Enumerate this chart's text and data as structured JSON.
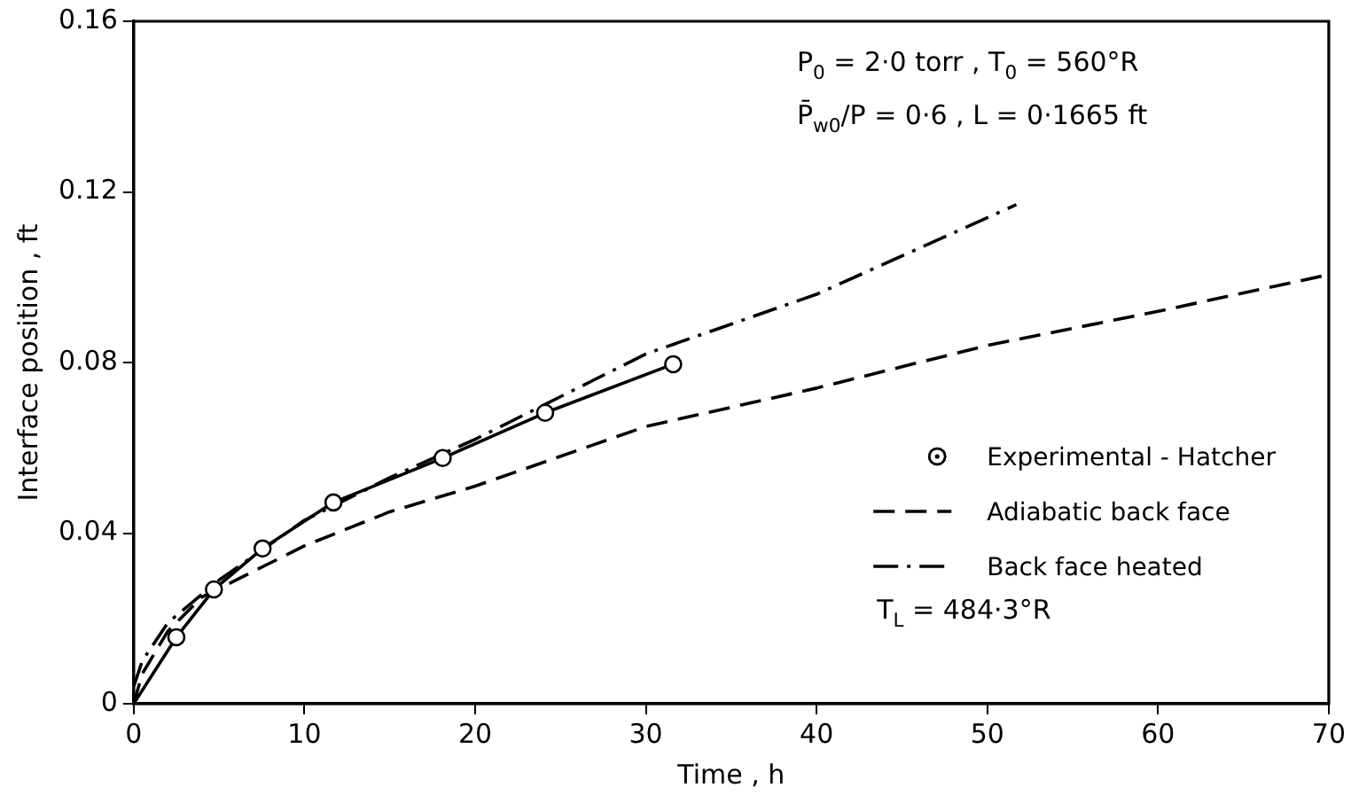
{
  "chart_data": {
    "type": "line",
    "xlabel": "Time , h",
    "ylabel": "Interface position , ft",
    "xlim": [
      0,
      70
    ],
    "xticks": [
      0,
      10,
      20,
      30,
      40,
      50,
      60,
      70
    ],
    "ylim": [
      0,
      0.16
    ],
    "yticks": [
      0,
      0.04,
      0.08,
      0.12,
      0.16
    ],
    "grid": false,
    "legend": "bottom right",
    "series": [
      {
        "name": "Experimental - Hatcher",
        "type": "scatter",
        "marker": "circle",
        "color": "#000000",
        "x": [
          2.5,
          4.7,
          7.55,
          11.7,
          18.1,
          24.1,
          31.6
        ],
        "values": [
          0.0156,
          0.0268,
          0.0364,
          0.0472,
          0.0576,
          0.0682,
          0.0796
        ]
      },
      {
        "marker": "none",
        "line_style": "solid",
        "color": "#000000",
        "x": [
          0,
          2.5,
          4.7,
          7.55,
          11.7,
          18.1,
          24.1,
          31.6
        ],
        "values": [
          0,
          0.0156,
          0.0268,
          0.0364,
          0.0472,
          0.0576,
          0.0682,
          0.0796
        ]
      },
      {
        "name": "Adiabatic back face",
        "marker": "none",
        "line_style": "dashed",
        "color": "#000000",
        "x": [
          0,
          0.5,
          2,
          4,
          6.5,
          10,
          15,
          20,
          30,
          40,
          50,
          60,
          70
        ],
        "values": [
          0,
          0.007,
          0.017,
          0.025,
          0.03,
          0.037,
          0.045,
          0.051,
          0.065,
          0.074,
          0.084,
          0.092,
          0.1006
        ]
      },
      {
        "name": "Back face heated",
        "marker": "none",
        "line_style": "dashdot",
        "color": "#000000",
        "x": [
          0,
          0.5,
          2,
          5,
          10,
          15,
          20,
          30,
          40,
          51.7
        ],
        "values": [
          0.004,
          0.01,
          0.019,
          0.029,
          0.043,
          0.053,
          0.062,
          0.082,
          0.096,
          0.117
        ]
      }
    ],
    "annotations": [
      "P$_{0}$ = 2·0 torr , T$_{0}$ = 560°R",
      "P̄$_{w0}$/P = 0·6 , L = 0·1665 ft",
      "T$_{L}$ = 484·3°R"
    ]
  }
}
